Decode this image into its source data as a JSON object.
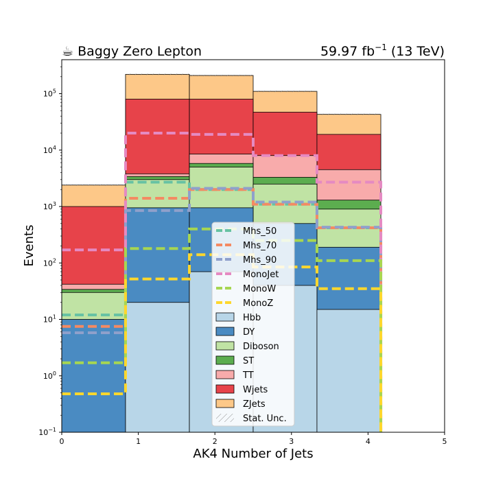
{
  "chart_data": {
    "type": "stacked_step_histogram",
    "title_left": "☕ Baggy Zero Lepton",
    "title_right_main": "59.97 fb",
    "title_right_sup": "−1",
    "title_right_tail": " (13 TeV)",
    "xlabel": "AK4 Number of Jets",
    "ylabel": "Events",
    "xlim": [
      0,
      5
    ],
    "ylim": [
      0.1,
      400000
    ],
    "yscale": "log",
    "x_ticks": [
      "0",
      "1",
      "2",
      "3",
      "4",
      "5"
    ],
    "y_ticks": [
      {
        "value": 0.1,
        "base": "10",
        "exp": "−1"
      },
      {
        "value": 1,
        "base": "10",
        "exp": "0"
      },
      {
        "value": 10,
        "base": "10",
        "exp": "1"
      },
      {
        "value": 100,
        "base": "10",
        "exp": "2"
      },
      {
        "value": 1000,
        "base": "10",
        "exp": "3"
      },
      {
        "value": 10000,
        "base": "10",
        "exp": "4"
      },
      {
        "value": 100000,
        "base": "10",
        "exp": "5"
      }
    ],
    "bin_edges": [
      0,
      0.833,
      1.667,
      2.5,
      3.333,
      4.167
    ],
    "stacked_cumulative": [
      {
        "name": "Hbb",
        "color": "#b8d6e8",
        "values": [
          0.1,
          20,
          70,
          40,
          15
        ]
      },
      {
        "name": "DY",
        "color": "#4a8bc2",
        "values": [
          10,
          950,
          950,
          500,
          190
        ]
      },
      {
        "name": "Diboson",
        "color": "#c0e3a4",
        "values": [
          30,
          3000,
          5000,
          2500,
          900
        ]
      },
      {
        "name": "ST",
        "color": "#5cad4f",
        "values": [
          34,
          3400,
          5800,
          3300,
          1300
        ]
      },
      {
        "name": "TT",
        "color": "#f8abab",
        "values": [
          42,
          3800,
          8500,
          8000,
          4500
        ]
      },
      {
        "name": "Wjets",
        "color": "#e7434a",
        "values": [
          1000,
          80000,
          80000,
          47000,
          19000
        ]
      },
      {
        "name": "ZJets",
        "color": "#fdc888",
        "values": [
          2400,
          220000,
          210000,
          110000,
          43000
        ]
      }
    ],
    "signals": [
      {
        "name": "Mhs_50",
        "color": "#67c2a3",
        "values": [
          12,
          2700,
          2000,
          1100,
          420
        ]
      },
      {
        "name": "Mhs_70",
        "color": "#f48a62",
        "values": [
          7.5,
          1400,
          2000,
          1100,
          420
        ]
      },
      {
        "name": "Mhs_90",
        "color": "#8fa0cb",
        "values": [
          5.8,
          850,
          2100,
          1200,
          430
        ]
      },
      {
        "name": "MonoJet",
        "color": "#e58ac2",
        "values": [
          170,
          20000,
          19000,
          8000,
          2700
        ]
      },
      {
        "name": "MonoW",
        "color": "#a7d651",
        "values": [
          1.7,
          180,
          400,
          250,
          110
        ]
      },
      {
        "name": "MonoZ",
        "color": "#fed72d",
        "values": [
          0.48,
          52,
          140,
          85,
          35
        ]
      }
    ],
    "legend_position": "center",
    "legend": [
      {
        "label": "Mhs_50",
        "kind": "line",
        "color": "#67c2a3"
      },
      {
        "label": "Mhs_70",
        "kind": "line",
        "color": "#f48a62"
      },
      {
        "label": "Mhs_90",
        "kind": "line",
        "color": "#8fa0cb"
      },
      {
        "label": "MonoJet",
        "kind": "line",
        "color": "#e58ac2"
      },
      {
        "label": "MonoW",
        "kind": "line",
        "color": "#a7d651"
      },
      {
        "label": "MonoZ",
        "kind": "line",
        "color": "#fed72d"
      },
      {
        "label": "Hbb",
        "kind": "patch",
        "color": "#b8d6e8"
      },
      {
        "label": "DY",
        "kind": "patch",
        "color": "#4a8bc2"
      },
      {
        "label": "Diboson",
        "kind": "patch",
        "color": "#c0e3a4"
      },
      {
        "label": "ST",
        "kind": "patch",
        "color": "#5cad4f"
      },
      {
        "label": "TT",
        "kind": "patch",
        "color": "#f8abab"
      },
      {
        "label": "Wjets",
        "kind": "patch",
        "color": "#e7434a"
      },
      {
        "label": "ZJets",
        "kind": "patch",
        "color": "#fdc888"
      },
      {
        "label": "Stat. Unc.",
        "kind": "hatch",
        "color": "#888888"
      }
    ]
  }
}
